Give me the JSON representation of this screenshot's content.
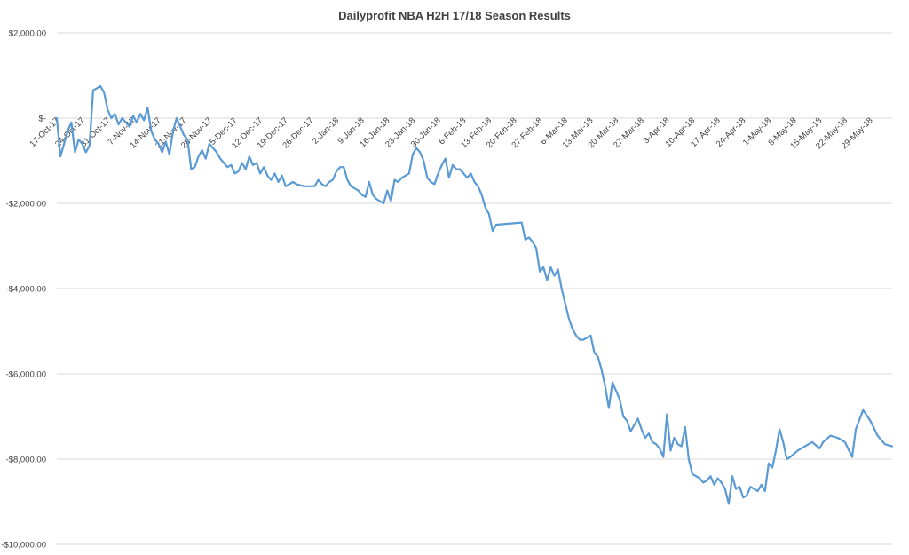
{
  "chart_data": {
    "type": "line",
    "title": "Dailyprofit NBA H2H 17/18 Season Results",
    "xlabel": "",
    "ylabel": "",
    "ylim": [
      -10000,
      2000
    ],
    "yticks": [
      2000,
      0,
      -2000,
      -4000,
      -6000,
      -8000,
      -10000
    ],
    "ytick_labels": [
      "$2,000.00",
      "$-",
      "-$2,000.00",
      "-$4,000.00",
      "-$6,000.00",
      "-$8,000.00",
      "-$10,000.00"
    ],
    "x_start": "2017-10-17",
    "x_end": "2018-06-04",
    "xtick_labels": [
      "17-Oct-17",
      "24-Oct-17",
      "31-Oct-17",
      "7-Nov-17",
      "14-Nov-17",
      "21-Nov-17",
      "28-Nov-17",
      "5-Dec-17",
      "12-Dec-17",
      "19-Dec-17",
      "26-Dec-17",
      "2-Jan-18",
      "9-Jan-18",
      "16-Jan-18",
      "23-Jan-18",
      "30-Jan-18",
      "6-Feb-18",
      "13-Feb-18",
      "20-Feb-18",
      "27-Feb-18",
      "6-Mar-18",
      "13-Mar-18",
      "20-Mar-18",
      "27-Mar-18",
      "3-Apr-18",
      "10-Apr-18",
      "17-Apr-18",
      "24-Apr-18",
      "1-May-18",
      "8-May-18",
      "15-May-18",
      "22-May-18",
      "29-May-18"
    ],
    "grid": true,
    "legend": "none",
    "series_color": "#5b9bd5",
    "points": [
      [
        "2017-10-17",
        0
      ],
      [
        "2017-10-18",
        -900
      ],
      [
        "2017-10-19",
        -600
      ],
      [
        "2017-10-20",
        -300
      ],
      [
        "2017-10-21",
        -100
      ],
      [
        "2017-10-22",
        -800
      ],
      [
        "2017-10-23",
        -500
      ],
      [
        "2017-10-24",
        -600
      ],
      [
        "2017-10-25",
        -800
      ],
      [
        "2017-10-26",
        -650
      ],
      [
        "2017-10-27",
        650
      ],
      [
        "2017-10-28",
        700
      ],
      [
        "2017-10-29",
        750
      ],
      [
        "2017-10-30",
        600
      ],
      [
        "2017-10-31",
        200
      ],
      [
        "2017-11-01",
        0
      ],
      [
        "2017-11-02",
        100
      ],
      [
        "2017-11-03",
        -150
      ],
      [
        "2017-11-04",
        0
      ],
      [
        "2017-11-05",
        -100
      ],
      [
        "2017-11-06",
        -200
      ],
      [
        "2017-11-07",
        50
      ],
      [
        "2017-11-08",
        -100
      ],
      [
        "2017-11-09",
        100
      ],
      [
        "2017-11-10",
        -50
      ],
      [
        "2017-11-11",
        250
      ],
      [
        "2017-11-12",
        -300
      ],
      [
        "2017-11-13",
        -500
      ],
      [
        "2017-11-14",
        -600
      ],
      [
        "2017-11-15",
        -800
      ],
      [
        "2017-11-16",
        -550
      ],
      [
        "2017-11-17",
        -850
      ],
      [
        "2017-11-18",
        -300
      ],
      [
        "2017-11-19",
        0
      ],
      [
        "2017-11-20",
        -200
      ],
      [
        "2017-11-21",
        -400
      ],
      [
        "2017-11-22",
        -500
      ],
      [
        "2017-11-23",
        -1200
      ],
      [
        "2017-11-24",
        -1150
      ],
      [
        "2017-11-25",
        -900
      ],
      [
        "2017-11-26",
        -750
      ],
      [
        "2017-11-27",
        -950
      ],
      [
        "2017-11-28",
        -600
      ],
      [
        "2017-11-29",
        -700
      ],
      [
        "2017-11-30",
        -800
      ],
      [
        "2017-12-01",
        -950
      ],
      [
        "2017-12-02",
        -1050
      ],
      [
        "2017-12-03",
        -1150
      ],
      [
        "2017-12-04",
        -1100
      ],
      [
        "2017-12-05",
        -1300
      ],
      [
        "2017-12-06",
        -1250
      ],
      [
        "2017-12-07",
        -1050
      ],
      [
        "2017-12-08",
        -1200
      ],
      [
        "2017-12-09",
        -900
      ],
      [
        "2017-12-10",
        -1100
      ],
      [
        "2017-12-11",
        -1050
      ],
      [
        "2017-12-12",
        -1300
      ],
      [
        "2017-12-13",
        -1150
      ],
      [
        "2017-12-14",
        -1350
      ],
      [
        "2017-12-15",
        -1450
      ],
      [
        "2017-12-16",
        -1300
      ],
      [
        "2017-12-17",
        -1500
      ],
      [
        "2017-12-18",
        -1350
      ],
      [
        "2017-12-19",
        -1600
      ],
      [
        "2017-12-20",
        -1550
      ],
      [
        "2017-12-21",
        -1500
      ],
      [
        "2017-12-22",
        -1550
      ],
      [
        "2017-12-24",
        -1600
      ],
      [
        "2017-12-26",
        -1600
      ],
      [
        "2017-12-27",
        -1600
      ],
      [
        "2017-12-28",
        -1450
      ],
      [
        "2017-12-29",
        -1550
      ],
      [
        "2017-12-30",
        -1600
      ],
      [
        "2017-12-31",
        -1500
      ],
      [
        "2018-01-01",
        -1450
      ],
      [
        "2018-01-02",
        -1250
      ],
      [
        "2018-01-03",
        -1150
      ],
      [
        "2018-01-04",
        -1150
      ],
      [
        "2018-01-05",
        -1450
      ],
      [
        "2018-01-06",
        -1600
      ],
      [
        "2018-01-07",
        -1650
      ],
      [
        "2018-01-08",
        -1700
      ],
      [
        "2018-01-09",
        -1800
      ],
      [
        "2018-01-10",
        -1850
      ],
      [
        "2018-01-11",
        -1500
      ],
      [
        "2018-01-12",
        -1800
      ],
      [
        "2018-01-13",
        -1900
      ],
      [
        "2018-01-14",
        -1950
      ],
      [
        "2018-01-15",
        -2000
      ],
      [
        "2018-01-16",
        -1700
      ],
      [
        "2018-01-17",
        -1950
      ],
      [
        "2018-01-18",
        -1450
      ],
      [
        "2018-01-19",
        -1500
      ],
      [
        "2018-01-20",
        -1400
      ],
      [
        "2018-01-21",
        -1350
      ],
      [
        "2018-01-22",
        -1300
      ],
      [
        "2018-01-23",
        -850
      ],
      [
        "2018-01-24",
        -700
      ],
      [
        "2018-01-25",
        -800
      ],
      [
        "2018-01-26",
        -1000
      ],
      [
        "2018-01-27",
        -1400
      ],
      [
        "2018-01-28",
        -1500
      ],
      [
        "2018-01-29",
        -1550
      ],
      [
        "2018-01-30",
        -1300
      ],
      [
        "2018-01-31",
        -1100
      ],
      [
        "2018-02-01",
        -950
      ],
      [
        "2018-02-02",
        -1400
      ],
      [
        "2018-02-03",
        -1100
      ],
      [
        "2018-02-04",
        -1200
      ],
      [
        "2018-02-05",
        -1200
      ],
      [
        "2018-02-06",
        -1300
      ],
      [
        "2018-02-07",
        -1400
      ],
      [
        "2018-02-08",
        -1300
      ],
      [
        "2018-02-09",
        -1500
      ],
      [
        "2018-02-10",
        -1600
      ],
      [
        "2018-02-11",
        -1800
      ],
      [
        "2018-02-12",
        -2100
      ],
      [
        "2018-02-13",
        -2250
      ],
      [
        "2018-02-14",
        -2650
      ],
      [
        "2018-02-15",
        -2500
      ],
      [
        "2018-02-22",
        -2450
      ],
      [
        "2018-02-23",
        -2850
      ],
      [
        "2018-02-24",
        -2800
      ],
      [
        "2018-02-25",
        -2900
      ],
      [
        "2018-02-26",
        -3050
      ],
      [
        "2018-02-27",
        -3600
      ],
      [
        "2018-02-28",
        -3500
      ],
      [
        "2018-03-01",
        -3800
      ],
      [
        "2018-03-02",
        -3500
      ],
      [
        "2018-03-03",
        -3700
      ],
      [
        "2018-03-04",
        -3550
      ],
      [
        "2018-03-05",
        -4000
      ],
      [
        "2018-03-06",
        -4350
      ],
      [
        "2018-03-07",
        -4700
      ],
      [
        "2018-03-08",
        -4950
      ],
      [
        "2018-03-09",
        -5100
      ],
      [
        "2018-03-10",
        -5200
      ],
      [
        "2018-03-11",
        -5200
      ],
      [
        "2018-03-12",
        -5150
      ],
      [
        "2018-03-13",
        -5100
      ],
      [
        "2018-03-14",
        -5500
      ],
      [
        "2018-03-15",
        -5600
      ],
      [
        "2018-03-16",
        -5900
      ],
      [
        "2018-03-17",
        -6300
      ],
      [
        "2018-03-18",
        -6800
      ],
      [
        "2018-03-19",
        -6200
      ],
      [
        "2018-03-20",
        -6400
      ],
      [
        "2018-03-21",
        -6600
      ],
      [
        "2018-03-22",
        -7000
      ],
      [
        "2018-03-23",
        -7100
      ],
      [
        "2018-03-24",
        -7350
      ],
      [
        "2018-03-25",
        -7200
      ],
      [
        "2018-03-26",
        -7050
      ],
      [
        "2018-03-27",
        -7300
      ],
      [
        "2018-03-28",
        -7500
      ],
      [
        "2018-03-29",
        -7400
      ],
      [
        "2018-03-30",
        -7600
      ],
      [
        "2018-03-31",
        -7650
      ],
      [
        "2018-04-01",
        -7750
      ],
      [
        "2018-04-02",
        -7950
      ],
      [
        "2018-04-03",
        -6950
      ],
      [
        "2018-04-04",
        -7800
      ],
      [
        "2018-04-05",
        -7500
      ],
      [
        "2018-04-06",
        -7650
      ],
      [
        "2018-04-07",
        -7700
      ],
      [
        "2018-04-08",
        -7250
      ],
      [
        "2018-04-09",
        -8000
      ],
      [
        "2018-04-10",
        -8350
      ],
      [
        "2018-04-11",
        -8400
      ],
      [
        "2018-04-12",
        -8450
      ],
      [
        "2018-04-13",
        -8550
      ],
      [
        "2018-04-14",
        -8500
      ],
      [
        "2018-04-15",
        -8400
      ],
      [
        "2018-04-16",
        -8600
      ],
      [
        "2018-04-17",
        -8450
      ],
      [
        "2018-04-18",
        -8550
      ],
      [
        "2018-04-19",
        -8700
      ],
      [
        "2018-04-20",
        -9050
      ],
      [
        "2018-04-21",
        -8400
      ],
      [
        "2018-04-22",
        -8700
      ],
      [
        "2018-04-23",
        -8650
      ],
      [
        "2018-04-24",
        -8900
      ],
      [
        "2018-04-25",
        -8850
      ],
      [
        "2018-04-26",
        -8650
      ],
      [
        "2018-04-27",
        -8700
      ],
      [
        "2018-04-28",
        -8750
      ],
      [
        "2018-04-29",
        -8600
      ],
      [
        "2018-04-30",
        -8750
      ],
      [
        "2018-05-01",
        -8100
      ],
      [
        "2018-05-02",
        -8200
      ],
      [
        "2018-05-03",
        -7800
      ],
      [
        "2018-05-04",
        -7300
      ],
      [
        "2018-05-05",
        -7600
      ],
      [
        "2018-05-06",
        -8000
      ],
      [
        "2018-05-07",
        -7950
      ],
      [
        "2018-05-09",
        -7800
      ],
      [
        "2018-05-11",
        -7700
      ],
      [
        "2018-05-13",
        -7600
      ],
      [
        "2018-05-15",
        -7750
      ],
      [
        "2018-05-16",
        -7600
      ],
      [
        "2018-05-18",
        -7450
      ],
      [
        "2018-05-20",
        -7500
      ],
      [
        "2018-05-22",
        -7600
      ],
      [
        "2018-05-24",
        -7950
      ],
      [
        "2018-05-25",
        -7300
      ],
      [
        "2018-05-27",
        -6850
      ],
      [
        "2018-05-29",
        -7100
      ],
      [
        "2018-05-31",
        -7450
      ],
      [
        "2018-06-02",
        -7650
      ],
      [
        "2018-06-04",
        -7700
      ]
    ]
  }
}
